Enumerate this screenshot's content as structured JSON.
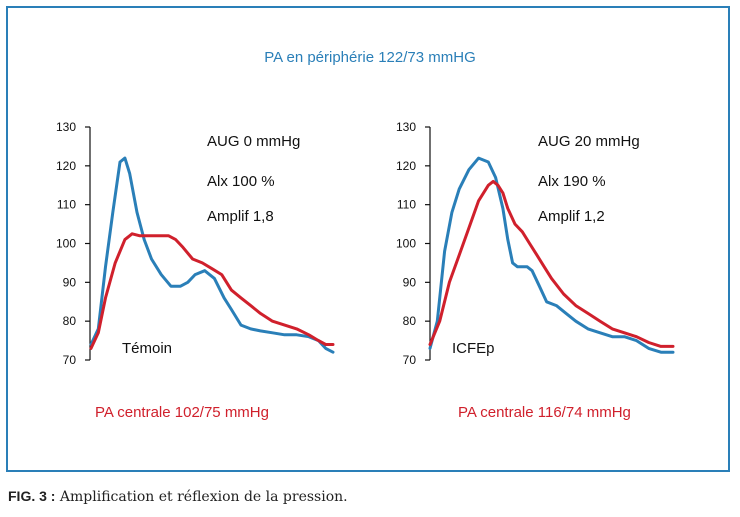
{
  "figure": {
    "top_title": "PA en périphérie 122/73 mmHG",
    "caption_label": "FIG. 3 :",
    "caption_text": " Amplification et réflexion de la pression."
  },
  "colors": {
    "blue": "#2a7fb8",
    "red": "#d0202c",
    "frame": "#2a7fb8"
  },
  "chart_data": [
    {
      "type": "line",
      "subject": "Témoin",
      "bottom_title": "PA centrale 102/75 mmHg",
      "annotations": [
        "AUG 0 mmHg",
        "Alx 100 %",
        "Amplif 1,8"
      ],
      "ylim": [
        70,
        130
      ],
      "yticks": [
        70,
        80,
        90,
        100,
        110,
        120,
        130
      ],
      "xlim": [
        0,
        100
      ],
      "series": [
        {
          "color": "blue",
          "x": [
            0,
            3,
            6,
            9,
            12,
            14,
            16,
            19,
            22,
            25,
            29,
            33,
            37,
            40,
            43,
            47,
            51,
            55,
            58,
            62,
            66,
            70,
            75,
            80,
            85,
            90,
            94,
            97,
            100
          ],
          "y": [
            74,
            78,
            94,
            108,
            121,
            122,
            118,
            108,
            101,
            96,
            92,
            89,
            89,
            90,
            92,
            93,
            91,
            86,
            83,
            79,
            78,
            77.5,
            77,
            76.5,
            76.5,
            76,
            75,
            73,
            72
          ]
        },
        {
          "color": "red",
          "x": [
            0,
            3,
            6,
            10,
            14,
            17,
            20,
            24,
            28,
            32,
            35,
            38,
            42,
            46,
            50,
            54,
            58,
            62,
            66,
            70,
            75,
            80,
            85,
            90,
            94,
            97,
            100
          ],
          "y": [
            73,
            77,
            86,
            95,
            101,
            102.5,
            102,
            102,
            102,
            102,
            101,
            99,
            96,
            95,
            93.5,
            92,
            88,
            86,
            84,
            82,
            80,
            79,
            78,
            76.5,
            75,
            74,
            74
          ]
        }
      ]
    },
    {
      "type": "line",
      "subject": "ICFEp",
      "bottom_title": "PA centrale 116/74 mmHg",
      "annotations": [
        "AUG 20 mmHg",
        "Alx 190 %",
        "Amplif 1,2"
      ],
      "ylim": [
        70,
        130
      ],
      "yticks": [
        70,
        80,
        90,
        100,
        110,
        120,
        130
      ],
      "xlim": [
        0,
        100
      ],
      "series": [
        {
          "color": "blue",
          "x": [
            0,
            3,
            6,
            9,
            12,
            16,
            20,
            24,
            27,
            30,
            32,
            34,
            36,
            38,
            40,
            42,
            45,
            48,
            52,
            56,
            60,
            65,
            70,
            75,
            80,
            85,
            90,
            95,
            100
          ],
          "y": [
            73,
            80,
            98,
            108,
            114,
            119,
            122,
            121,
            117,
            109,
            101,
            95,
            94,
            94,
            94,
            93,
            89,
            85,
            84,
            82,
            80,
            78,
            77,
            76,
            76,
            75,
            73,
            72,
            72
          ]
        },
        {
          "color": "red",
          "x": [
            0,
            4,
            8,
            12,
            16,
            20,
            24,
            26,
            28,
            30,
            32,
            35,
            38,
            41,
            44,
            47,
            50,
            55,
            60,
            65,
            70,
            75,
            80,
            85,
            90,
            95,
            100
          ],
          "y": [
            74,
            80,
            90,
            97,
            104,
            111,
            115,
            116,
            115,
            113,
            109,
            105,
            103,
            100,
            97,
            94,
            91,
            87,
            84,
            82,
            80,
            78,
            77,
            76,
            74.5,
            73.5,
            73.5
          ]
        }
      ]
    }
  ]
}
